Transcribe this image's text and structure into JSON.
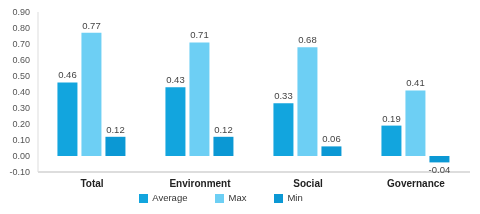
{
  "chart_data": {
    "type": "bar",
    "categories": [
      "Total",
      "Environment",
      "Social",
      "Governance"
    ],
    "series": [
      {
        "name": "Average",
        "color": "#12a5de",
        "values": [
          0.46,
          0.43,
          0.33,
          0.19
        ]
      },
      {
        "name": "Max",
        "color": "#6dcff4",
        "values": [
          0.77,
          0.71,
          0.68,
          0.41
        ]
      },
      {
        "name": "Min",
        "color": "#0b98d4",
        "values": [
          0.12,
          0.12,
          0.06,
          -0.04
        ]
      }
    ],
    "ylim": [
      -0.1,
      0.9
    ],
    "yticks": [
      {
        "value": -0.1,
        "label": "-0.10"
      },
      {
        "value": 0,
        "label": "0.00"
      },
      {
        "value": 0.1,
        "label": "0.10"
      },
      {
        "value": 0.2,
        "label": "0.20"
      },
      {
        "value": 0.3,
        "label": "0.30"
      },
      {
        "value": 0.4,
        "label": "0.40"
      },
      {
        "value": 0.5,
        "label": "0.50"
      },
      {
        "value": 0.6,
        "label": "0.60"
      },
      {
        "value": 0.7,
        "label": "0.70"
      },
      {
        "value": 0.8,
        "label": "0.80"
      },
      {
        "value": 0.9,
        "label": "0.90"
      }
    ],
    "grid": false,
    "legend": "bottom",
    "data_labels": true
  }
}
